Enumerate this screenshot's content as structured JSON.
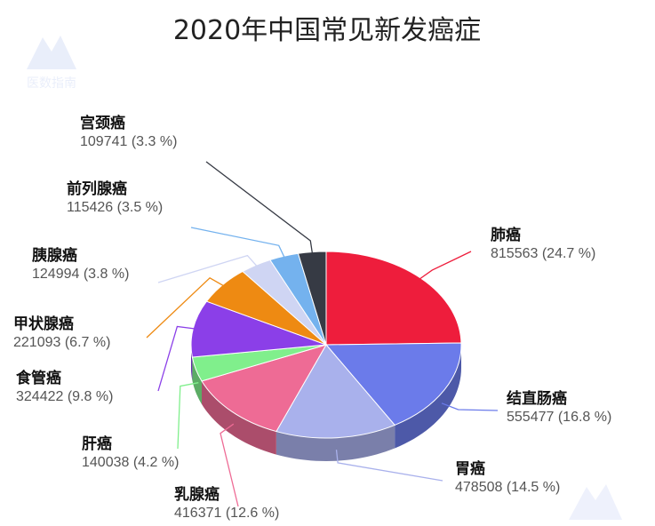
{
  "chart_data": {
    "type": "pie",
    "title": "2020年中国常见新发癌症",
    "watermark": "医数指南",
    "slices": [
      {
        "name": "肺癌",
        "value": 815563,
        "percent_label": "(24.7 %)",
        "color": "#ee1d3c"
      },
      {
        "name": "结直肠癌",
        "value": 555477,
        "percent_label": "(16.8 %)",
        "color": "#6b7bea"
      },
      {
        "name": "胃癌",
        "value": 478508,
        "percent_label": "(14.5 %)",
        "color": "#a9b1ec"
      },
      {
        "name": "乳腺癌",
        "value": 416371,
        "percent_label": "(12.6 %)",
        "color": "#ee6b95"
      },
      {
        "name": "肝癌",
        "value": 140038,
        "percent_label": "(4.2 %)",
        "color": "#80ef8c"
      },
      {
        "name": "食管癌",
        "value": 324422,
        "percent_label": "(9.8 %)",
        "color": "#8b3fe8"
      },
      {
        "name": "甲状腺癌",
        "value": 221093,
        "percent_label": "(6.7 %)",
        "color": "#ee8a12"
      },
      {
        "name": "胰腺癌",
        "value": 124994,
        "percent_label": "(3.8 %)",
        "color": "#cfd5f3"
      },
      {
        "name": "前列腺癌",
        "value": 115426,
        "percent_label": "(3.5 %)",
        "color": "#74b2ee"
      },
      {
        "name": "宫颈癌",
        "value": 109741,
        "percent_label": "(3.3 %)",
        "color": "#363a44"
      }
    ]
  }
}
